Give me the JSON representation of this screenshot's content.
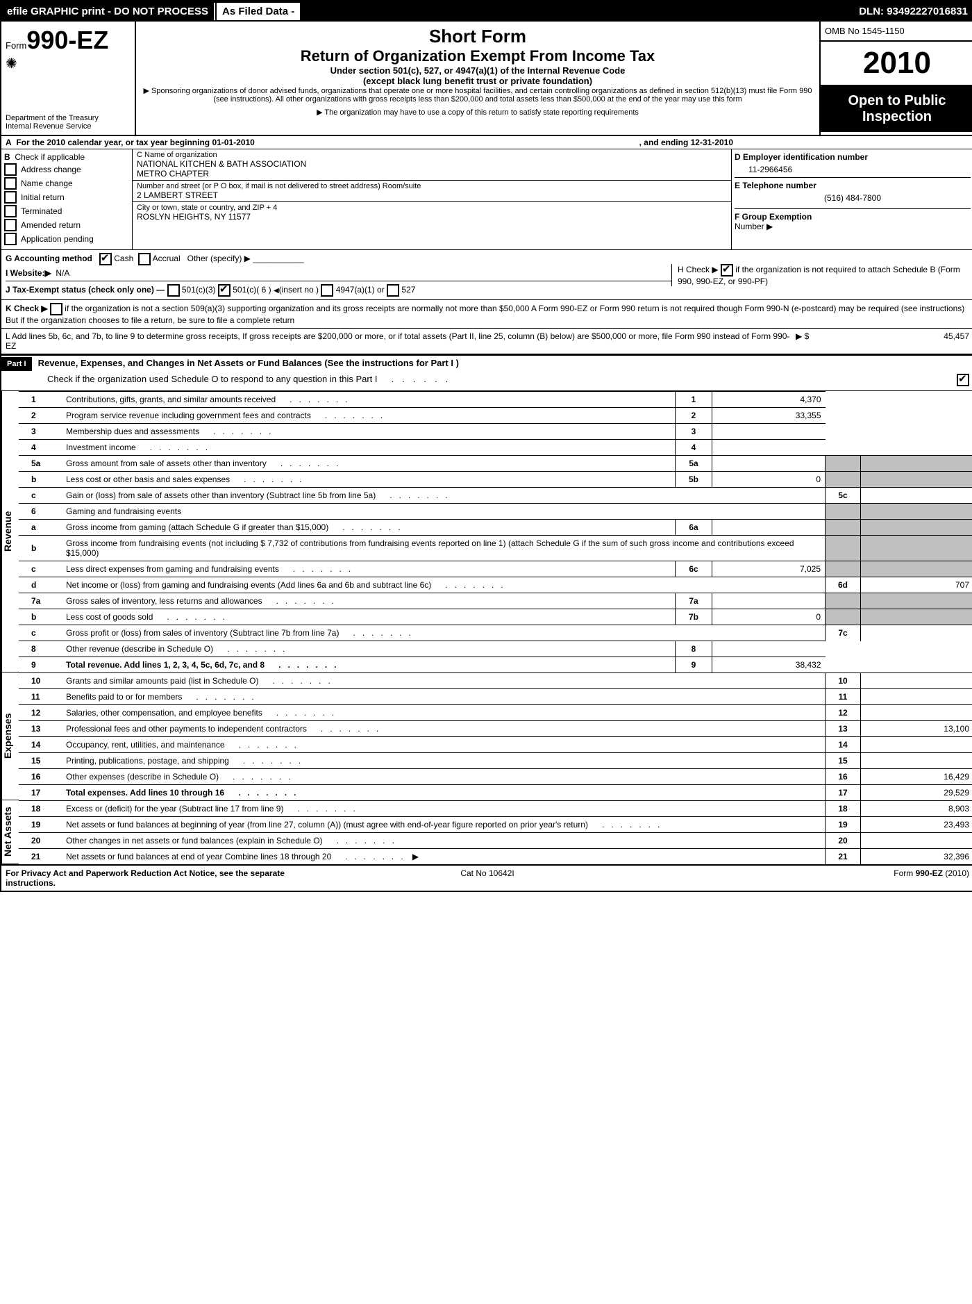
{
  "topbar": {
    "efile": "efile GRAPHIC print - DO NOT PROCESS",
    "asfiled": "As Filed Data -",
    "dln": "DLN: 93492227016831"
  },
  "header": {
    "form_prefix": "Form",
    "form_no": "990-EZ",
    "short": "Short Form",
    "title": "Return of Organization Exempt From Income Tax",
    "sub1": "Under section 501(c), 527, or 4947(a)(1) of the Internal Revenue Code",
    "sub2": "(except black lung benefit trust or private foundation)",
    "note1": "▶ Sponsoring organizations of donor advised funds, organizations that operate one or more hospital facilities, and certain controlling organizations as defined in section 512(b)(13) must file Form 990 (see instructions). All other organizations with gross receipts less than $200,000 and total assets less than $500,000 at the end of the year may use this form",
    "note2": "▶ The organization may have to use a copy of this return to satisfy state reporting requirements",
    "dept1": "Department of the Treasury",
    "dept2": "Internal Revenue Service",
    "omb": "OMB No  1545-1150",
    "year": "2010",
    "open1": "Open to Public",
    "open2": "Inspection"
  },
  "A": {
    "text": "For the 2010 calendar year, or tax year beginning 01-01-2010",
    "ending": ", and ending 12-31-2010"
  },
  "B": {
    "title": "B",
    "label": "Check if applicable",
    "opts": [
      "Address change",
      "Name change",
      "Initial return",
      "Terminated",
      "Amended return",
      "Application pending"
    ]
  },
  "C": {
    "label": "C Name of organization",
    "name1": "NATIONAL KITCHEN & BATH ASSOCIATION",
    "name2": "METRO CHAPTER",
    "street_label": "Number and street (or P  O  box, if mail is not delivered to street address) Room/suite",
    "street": "2 LAMBERT STREET",
    "city_label": "City or town, state or country, and ZIP + 4",
    "city": "ROSLYN HEIGHTS, NY  11577"
  },
  "D": {
    "ein_label": "D Employer identification number",
    "ein": "11-2966456",
    "tel_label": "E Telephone number",
    "tel": "(516) 484-7800",
    "ge_label": "F Group Exemption",
    "ge2": "Number ▶"
  },
  "G": {
    "label": "G Accounting method",
    "cash": "Cash",
    "accrual": "Accrual",
    "other": "Other (specify) ▶"
  },
  "I": {
    "label": "I Website:▶",
    "val": "N/A"
  },
  "H": {
    "text": "H   Check ▶",
    "chk": true,
    "tail": "if the organization is not required to attach Schedule B (Form 990, 990-EZ, or 990-PF)"
  },
  "J": {
    "text": "J Tax-Exempt status (check only one) —",
    "o1": "501(c)(3)",
    "o2": "501(c)( 6 )",
    "ins": "(insert no )",
    "o3": "4947(a)(1) or",
    "o4": "527"
  },
  "K": {
    "text": "K Check ▶",
    "tail": "if the organization is not a section 509(a)(3) supporting organization and its gross receipts are normally not more than $50,000  A Form 990-EZ or Form 990 return is not required though Form 990-N (e-postcard) may be required (see instructions)  But if the organization chooses to file a return, be sure to file a complete return"
  },
  "L": {
    "text": "L Add lines 5b, 6c, and 7b, to line 9 to determine gross receipts, If gross receipts are $200,000 or more, or if total assets (Part II, line 25, column (B) below) are $500,000 or more, file Form 990 instead of Form 990-EZ",
    "amt_label": "▶ $",
    "amt": "45,457"
  },
  "part1": {
    "bar": "Part I",
    "title": "Revenue, Expenses, and Changes in Net Assets or Fund Balances (See the instructions for Part I )",
    "check": "Check if the organization used Schedule O to respond to any question in this Part I",
    "check_on": true
  },
  "rows": [
    {
      "n": "1",
      "d": "Contributions, gifts, grants, and similar amounts received",
      "a": "4,370"
    },
    {
      "n": "2",
      "d": "Program service revenue including government fees and contracts",
      "a": "33,355"
    },
    {
      "n": "3",
      "d": "Membership dues and assessments",
      "a": ""
    },
    {
      "n": "4",
      "d": "Investment income",
      "a": ""
    }
  ],
  "sub5": [
    {
      "n": "5a",
      "d": "Gross amount from sale of assets other than inventory",
      "sn": "5a",
      "sa": ""
    },
    {
      "n": "b",
      "d": "Less  cost or other basis and sales expenses",
      "sn": "5b",
      "sa": "0"
    }
  ],
  "r5c": {
    "n": "c",
    "d": "Gain or (loss) from sale of assets other than inventory (Subtract line 5b from line 5a)",
    "rn": "5c",
    "a": ""
  },
  "r6": {
    "n": "6",
    "d": "Gaming and fundraising events"
  },
  "r6a": {
    "n": "a",
    "d": "Gross income from gaming (attach Schedule G if greater than $15,000)",
    "sn": "6a",
    "sa": ""
  },
  "r6b": {
    "n": "b",
    "d": "Gross income from fundraising events (not including $ 7,732 of contributions from fundraising events reported on line 1) (attach Schedule G if the sum of such gross income and contributions exceed $15,000)"
  },
  "r6c": {
    "n": "c",
    "d": "Less  direct expenses from gaming and fundraising events",
    "sn": "6c",
    "sa": "7,025"
  },
  "r6d": {
    "n": "d",
    "d": "Net income or (loss) from gaming and fundraising events (Add lines 6a and 6b and subtract line 6c)",
    "rn": "6d",
    "a": "707"
  },
  "sub7": [
    {
      "n": "7a",
      "d": "Gross sales of inventory, less returns and allowances",
      "sn": "7a",
      "sa": ""
    },
    {
      "n": "b",
      "d": "Less  cost of goods sold",
      "sn": "7b",
      "sa": "0"
    }
  ],
  "r7c": {
    "n": "c",
    "d": "Gross profit or (loss) from sales of inventory (Subtract line 7b from line 7a)",
    "rn": "7c",
    "a": ""
  },
  "tail": [
    {
      "n": "8",
      "d": "Other revenue (describe in Schedule O)",
      "a": ""
    },
    {
      "n": "9",
      "d": "Total revenue. Add lines 1, 2, 3, 4, 5c, 6d, 7c, and 8",
      "a": "38,432",
      "bold": true
    }
  ],
  "exp": [
    {
      "n": "10",
      "d": "Grants and similar amounts paid (list in Schedule O)",
      "a": ""
    },
    {
      "n": "11",
      "d": "Benefits paid to or for members",
      "a": ""
    },
    {
      "n": "12",
      "d": "Salaries, other compensation, and employee benefits",
      "a": ""
    },
    {
      "n": "13",
      "d": "Professional fees and other payments to independent contractors",
      "a": "13,100"
    },
    {
      "n": "14",
      "d": "Occupancy, rent, utilities, and maintenance",
      "a": ""
    },
    {
      "n": "15",
      "d": "Printing, publications, postage, and shipping",
      "a": ""
    },
    {
      "n": "16",
      "d": "Other expenses (describe in Schedule O)",
      "a": "16,429"
    },
    {
      "n": "17",
      "d": "Total expenses. Add lines 10 through 16",
      "a": "29,529",
      "bold": true
    }
  ],
  "na": [
    {
      "n": "18",
      "d": "Excess or (deficit) for the year (Subtract line 17 from line 9)",
      "a": "8,903"
    },
    {
      "n": "19",
      "d": "Net assets or fund balances at beginning of year (from line 27, column (A)) (must agree with end-of-year figure reported on prior year's return)",
      "a": "23,493"
    },
    {
      "n": "20",
      "d": "Other changes in net assets or fund balances (explain in Schedule O)",
      "a": ""
    },
    {
      "n": "21",
      "d": "Net assets or fund balances at end of year  Combine lines 18 through 20",
      "a": "32,396",
      "arrow": true
    }
  ],
  "sections": {
    "rev": "Revenue",
    "exp": "Expenses",
    "na": "Net Assets"
  },
  "footer": {
    "l": "For Privacy Act and Paperwork Reduction Act Notice, see the separate instructions.",
    "c": "Cat  No  10642I",
    "r": "Form 990-EZ (2010)"
  }
}
